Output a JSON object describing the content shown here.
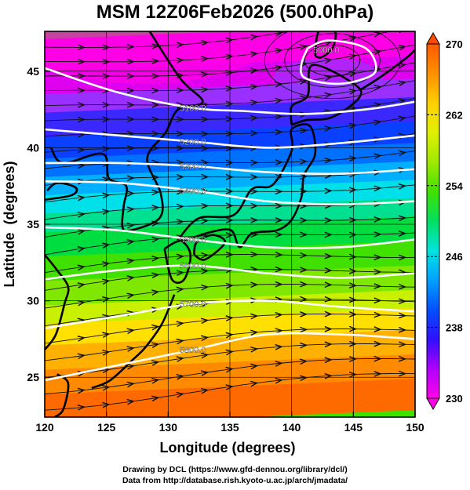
{
  "title": "MSM 12Z06Feb2026 (500.0hPa)",
  "credits": [
    "Drawing by DCL (https://www.gfd-dennou.org/library/dcl/)",
    "Data from http://database.rish.kyoto-u.ac.jp/arch/jmadata/"
  ],
  "map": {
    "xlabel": "Longitude (degrees)",
    "ylabel": "Latitude  (degrees)",
    "xlim": [
      120,
      150
    ],
    "ylim": [
      22.4,
      47.6
    ],
    "xticks": [
      "120",
      "125",
      "130",
      "135",
      "140",
      "145",
      "150"
    ],
    "yticks": [
      "25",
      "30",
      "35",
      "40",
      "45"
    ],
    "shading": "temperature",
    "contours": "geopotential height",
    "vectors": "wind streamlines"
  },
  "colorbar": {
    "range": [
      230,
      270
    ],
    "ticks": [
      "230",
      "238",
      "246",
      "254",
      "262",
      "270"
    ],
    "palette": [
      "#ff00e6",
      "#b000ff",
      "#3010ff",
      "#0050ff",
      "#00a0ff",
      "#00e5e0",
      "#00e060",
      "#40e000",
      "#a0e800",
      "#e0f000",
      "#ffd000",
      "#ff9000",
      "#ff5a00"
    ]
  },
  "contour_labels": [
    "5000.0",
    "5100.0",
    "5200.0",
    "5300.0",
    "5400.0",
    "5500.0",
    "5600.0",
    "5700.0",
    "5800.0"
  ],
  "chart_data": {
    "type": "heatmap",
    "title": "MSM 12Z06Feb2026 (500.0hPa)",
    "xlabel": "Longitude (degrees)",
    "ylabel": "Latitude  (degrees)",
    "xlim": [
      120,
      150
    ],
    "ylim": [
      22.4,
      47.6
    ],
    "color_range": [
      230,
      270
    ],
    "contours": [
      {
        "label": "5000.0",
        "points": [
          [
            141.3,
            46.5
          ],
          [
            143,
            47.0
          ],
          [
            146,
            46.5
          ],
          [
            146.8,
            45.0
          ],
          [
            145,
            44.3
          ],
          [
            143,
            44.2
          ],
          [
            141,
            44.6
          ],
          [
            140.8,
            45.5
          ],
          [
            141.3,
            46.5
          ]
        ]
      },
      {
        "label": "5100.0",
        "points": [
          [
            120,
            45.2
          ],
          [
            126,
            43.6
          ],
          [
            132,
            42.6
          ],
          [
            136,
            42.4
          ],
          [
            141,
            42.2
          ],
          [
            146,
            42.5
          ],
          [
            150,
            43.0
          ]
        ]
      },
      {
        "label": "5200.0",
        "points": [
          [
            120,
            41.2
          ],
          [
            126,
            40.8
          ],
          [
            132,
            40.4
          ],
          [
            138,
            40.0
          ],
          [
            144,
            40.3
          ],
          [
            150,
            40.8
          ]
        ]
      },
      {
        "label": "5300.0",
        "points": [
          [
            120,
            39.0
          ],
          [
            126,
            39.0
          ],
          [
            132,
            38.8
          ],
          [
            138,
            38.4
          ],
          [
            144,
            38.3
          ],
          [
            150,
            38.6
          ]
        ]
      },
      {
        "label": "5400.0",
        "points": [
          [
            120,
            37.8
          ],
          [
            126,
            37.7
          ],
          [
            132,
            37.2
          ],
          [
            138,
            36.5
          ],
          [
            144,
            36.3
          ],
          [
            150,
            36.5
          ]
        ]
      },
      {
        "label": "5500.0",
        "points": [
          [
            120,
            34.8
          ],
          [
            126,
            34.6
          ],
          [
            132,
            34.0
          ],
          [
            138,
            33.5
          ],
          [
            144,
            33.5
          ],
          [
            150,
            34.0
          ]
        ]
      },
      {
        "label": "5600.0",
        "points": [
          [
            120,
            31.4
          ],
          [
            126,
            32.0
          ],
          [
            132,
            32.3
          ],
          [
            138,
            31.8
          ],
          [
            144,
            31.5
          ],
          [
            150,
            31.8
          ]
        ]
      },
      {
        "label": "5700.0",
        "points": [
          [
            120,
            28.2
          ],
          [
            126,
            29.0
          ],
          [
            132,
            29.8
          ],
          [
            138,
            30.0
          ],
          [
            144,
            29.6
          ],
          [
            150,
            29.3
          ]
        ]
      },
      {
        "label": "5800.0",
        "points": [
          [
            120,
            24.8
          ],
          [
            126,
            25.8
          ],
          [
            132,
            26.8
          ],
          [
            138,
            27.8
          ],
          [
            144,
            27.8
          ],
          [
            150,
            27.5
          ]
        ]
      }
    ]
  }
}
